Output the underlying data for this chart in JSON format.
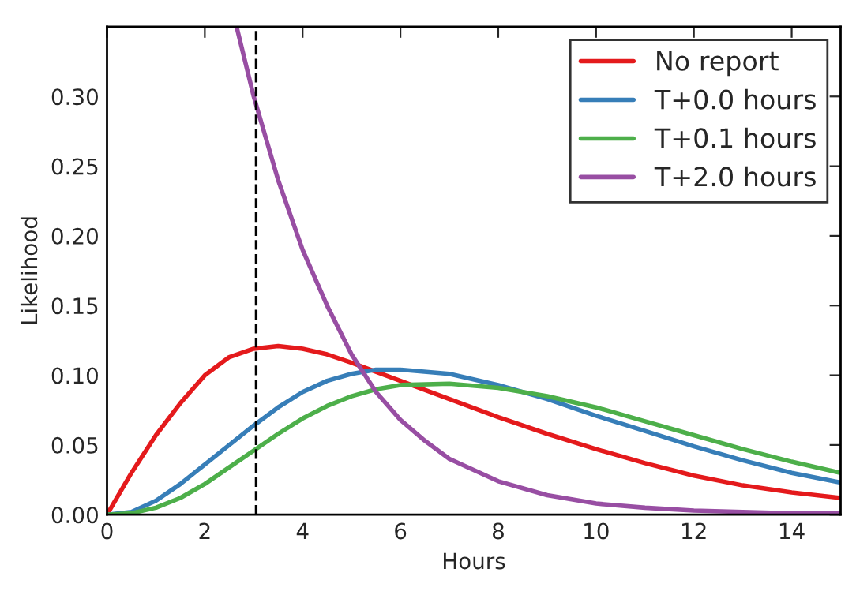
{
  "chart_data": {
    "type": "line",
    "xlabel": "Hours",
    "ylabel": "Likelihood",
    "xlim": [
      0,
      15
    ],
    "ylim": [
      0,
      0.35
    ],
    "xticks": [
      0,
      2,
      4,
      6,
      8,
      10,
      12,
      14
    ],
    "yticks": [
      {
        "value": 0,
        "label": "0.00"
      },
      {
        "value": 0.05,
        "label": "0.05"
      },
      {
        "value": 0.1,
        "label": "0.10"
      },
      {
        "value": 0.15,
        "label": "0.15"
      },
      {
        "value": 0.2,
        "label": "0.20"
      },
      {
        "value": 0.25,
        "label": "0.25"
      },
      {
        "value": 0.3,
        "label": "0.30"
      }
    ],
    "grid": false,
    "legend": "top right",
    "line_style": "solid",
    "marker": "none",
    "ref_lines": [
      {
        "axis": "x",
        "value": 3.05,
        "color": "#000000",
        "line_style": "dashed"
      }
    ],
    "series": [
      {
        "name": "No report",
        "color": "#e41a1c",
        "x": [
          0,
          0.5,
          1,
          1.5,
          2,
          2.5,
          3,
          3.5,
          4,
          4.5,
          5,
          6,
          7,
          8,
          9,
          10,
          11,
          12,
          13,
          14,
          15
        ],
        "values": [
          0,
          0.03,
          0.057,
          0.08,
          0.1,
          0.113,
          0.119,
          0.121,
          0.119,
          0.115,
          0.109,
          0.096,
          0.083,
          0.07,
          0.058,
          0.047,
          0.037,
          0.028,
          0.021,
          0.016,
          0.012
        ]
      },
      {
        "name": "T+0.0 hours",
        "color": "#377eb8",
        "x": [
          0,
          0.5,
          1,
          1.5,
          2,
          2.5,
          3,
          3.5,
          4,
          4.5,
          5,
          5.5,
          6,
          7,
          8,
          9,
          10,
          11,
          12,
          13,
          14,
          15
        ],
        "values": [
          0,
          0.002,
          0.01,
          0.022,
          0.036,
          0.05,
          0.064,
          0.077,
          0.088,
          0.096,
          0.101,
          0.104,
          0.104,
          0.101,
          0.093,
          0.083,
          0.071,
          0.06,
          0.049,
          0.039,
          0.03,
          0.023
        ]
      },
      {
        "name": "T+0.1 hours",
        "color": "#4daf4a",
        "x": [
          0,
          0.5,
          1,
          1.5,
          2,
          2.5,
          3,
          3.5,
          4,
          4.5,
          5,
          5.5,
          6,
          7,
          8,
          9,
          10,
          11,
          12,
          13,
          14,
          15
        ],
        "values": [
          0,
          0.001,
          0.005,
          0.012,
          0.022,
          0.034,
          0.046,
          0.058,
          0.069,
          0.078,
          0.085,
          0.09,
          0.093,
          0.094,
          0.091,
          0.085,
          0.077,
          0.067,
          0.057,
          0.047,
          0.038,
          0.03
        ]
      },
      {
        "name": "T+2.0 hours",
        "color": "#984ea3",
        "x": [
          2.65,
          3,
          3.5,
          4,
          4.5,
          5,
          5.5,
          6,
          6.5,
          7,
          8,
          9,
          10,
          11,
          12,
          13,
          14,
          15
        ],
        "values": [
          0.35,
          0.3,
          0.24,
          0.19,
          0.15,
          0.115,
          0.088,
          0.068,
          0.053,
          0.04,
          0.024,
          0.014,
          0.008,
          0.005,
          0.003,
          0.002,
          0.001,
          0.001
        ]
      }
    ]
  }
}
